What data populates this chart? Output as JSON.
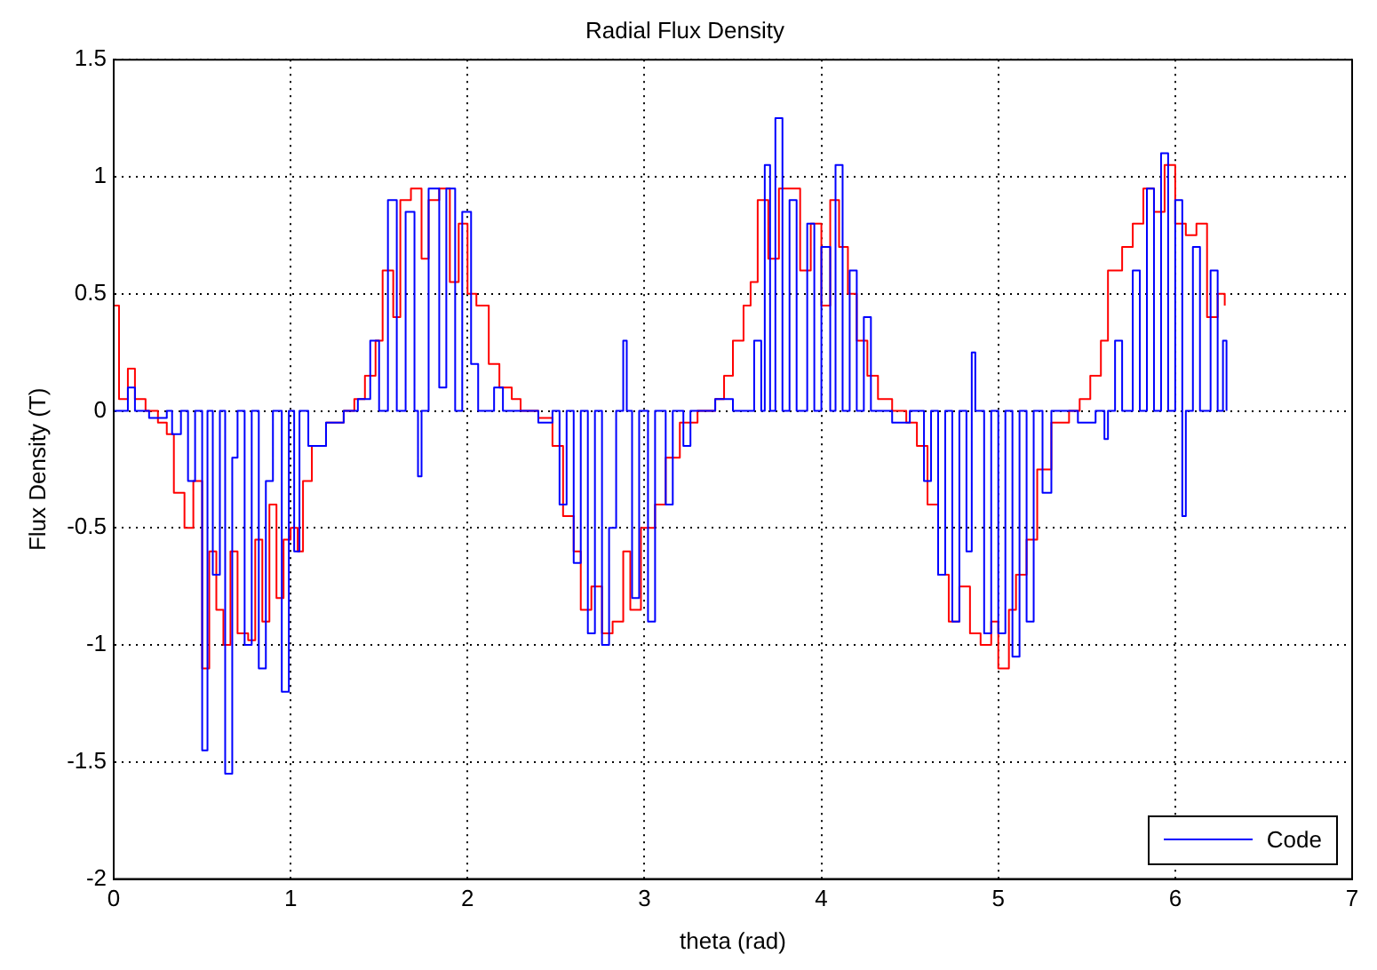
{
  "chart_data": {
    "type": "step",
    "title": "Radial Flux Density",
    "xlabel": "theta (rad)",
    "ylabel": "Flux Density (T)",
    "xlim": [
      0,
      7
    ],
    "xticks": [
      0,
      1,
      2,
      3,
      4,
      5,
      6,
      7
    ],
    "ylim": [
      -2,
      1.5
    ],
    "yticks": [
      -2,
      -1.5,
      -1,
      -0.5,
      0,
      0.5,
      1,
      1.5
    ],
    "grid": true,
    "legend": "bottom right",
    "marker": "none",
    "line_style": "solid",
    "series": [
      {
        "name": "Code",
        "color": "#0000ff",
        "x": [
          0,
          0.08,
          0.12,
          0.2,
          0.3,
          0.33,
          0.38,
          0.42,
          0.46,
          0.5,
          0.53,
          0.56,
          0.6,
          0.63,
          0.67,
          0.7,
          0.74,
          0.78,
          0.82,
          0.86,
          0.9,
          0.95,
          0.99,
          1.02,
          1.05,
          1.1,
          1.2,
          1.3,
          1.38,
          1.45,
          1.5,
          1.55,
          1.6,
          1.65,
          1.7,
          1.72,
          1.74,
          1.78,
          1.84,
          1.88,
          1.93,
          1.97,
          2.02,
          2.06,
          2.15,
          2.2,
          2.4,
          2.48,
          2.52,
          2.56,
          2.6,
          2.64,
          2.68,
          2.72,
          2.76,
          2.8,
          2.84,
          2.88,
          2.9,
          2.93,
          2.97,
          3.02,
          3.06,
          3.12,
          3.16,
          3.22,
          3.26,
          3.4,
          3.5,
          3.62,
          3.66,
          3.68,
          3.71,
          3.74,
          3.78,
          3.82,
          3.86,
          3.92,
          3.96,
          4.0,
          4.05,
          4.08,
          4.12,
          4.16,
          4.2,
          4.24,
          4.28,
          4.4,
          4.5,
          4.58,
          4.62,
          4.66,
          4.7,
          4.74,
          4.78,
          4.82,
          4.85,
          4.87,
          4.92,
          4.96,
          5.0,
          5.04,
          5.08,
          5.12,
          5.16,
          5.2,
          5.25,
          5.3,
          5.45,
          5.55,
          5.6,
          5.62,
          5.66,
          5.7,
          5.76,
          5.8,
          5.84,
          5.88,
          5.92,
          5.96,
          6.0,
          6.04,
          6.06,
          6.1,
          6.14,
          6.2,
          6.24,
          6.27,
          6.29
        ],
        "values": [
          0,
          0.1,
          0,
          -0.03,
          0,
          -0.1,
          0,
          -0.3,
          0,
          -1.45,
          0,
          -0.7,
          0,
          -1.55,
          -0.2,
          0,
          -1.0,
          0,
          -1.1,
          -0.3,
          0,
          -1.2,
          0,
          -0.6,
          0,
          -0.15,
          -0.05,
          0,
          0.05,
          0.3,
          0,
          0.9,
          0,
          0.85,
          0,
          -0.28,
          0,
          0.95,
          0.1,
          0.95,
          0,
          0.85,
          0.2,
          0,
          0.1,
          0,
          -0.05,
          0,
          -0.4,
          0,
          -0.65,
          0,
          -0.95,
          0,
          -1.0,
          -0.5,
          0,
          0.3,
          0,
          -0.8,
          0,
          -0.9,
          0,
          -0.4,
          0,
          -0.15,
          0,
          0.05,
          0,
          0.3,
          0,
          1.05,
          0,
          1.25,
          0,
          0.9,
          0,
          0.8,
          0,
          0.7,
          0,
          1.05,
          0,
          0.6,
          0,
          0.4,
          0,
          -0.05,
          0,
          -0.3,
          0,
          -0.7,
          0,
          -0.9,
          0,
          -0.6,
          0.25,
          0,
          -0.95,
          0,
          -0.95,
          0,
          -1.05,
          0,
          -0.9,
          0,
          -0.35,
          0,
          -0.05,
          0,
          -0.12,
          0,
          0.3,
          0,
          0.6,
          0,
          0.95,
          0,
          1.1,
          0,
          0.9,
          -0.45,
          0,
          0.7,
          0,
          0.6,
          0,
          0.3,
          0
        ]
      },
      {
        "color": "#ff0000",
        "x": [
          0,
          0.03,
          0.08,
          0.12,
          0.18,
          0.25,
          0.3,
          0.34,
          0.4,
          0.45,
          0.5,
          0.54,
          0.58,
          0.62,
          0.66,
          0.7,
          0.76,
          0.8,
          0.84,
          0.88,
          0.92,
          0.96,
          1.0,
          1.04,
          1.07,
          1.12,
          1.2,
          1.3,
          1.36,
          1.42,
          1.48,
          1.52,
          1.58,
          1.62,
          1.68,
          1.74,
          1.78,
          1.84,
          1.9,
          1.95,
          2.0,
          2.05,
          2.12,
          2.18,
          2.25,
          2.3,
          2.4,
          2.48,
          2.54,
          2.6,
          2.64,
          2.7,
          2.76,
          2.82,
          2.88,
          2.92,
          2.98,
          3.06,
          3.12,
          3.2,
          3.3,
          3.4,
          3.45,
          3.5,
          3.56,
          3.6,
          3.64,
          3.7,
          3.76,
          3.82,
          3.88,
          3.94,
          4.0,
          4.05,
          4.1,
          4.15,
          4.2,
          4.26,
          4.32,
          4.4,
          4.48,
          4.54,
          4.6,
          4.66,
          4.72,
          4.78,
          4.84,
          4.9,
          4.96,
          5.0,
          5.06,
          5.1,
          5.16,
          5.22,
          5.3,
          5.4,
          5.46,
          5.52,
          5.58,
          5.62,
          5.7,
          5.76,
          5.82,
          5.88,
          5.94,
          6.0,
          6.06,
          6.12,
          6.18,
          6.24,
          6.28
        ],
        "values": [
          0.45,
          0.05,
          0.18,
          0.05,
          0,
          -0.05,
          -0.1,
          -0.35,
          -0.5,
          -0.3,
          -1.1,
          -0.6,
          -0.85,
          -1.0,
          -0.6,
          -0.95,
          -0.98,
          -0.55,
          -0.9,
          -0.4,
          -0.8,
          -0.55,
          -0.5,
          -0.6,
          -0.3,
          -0.15,
          -0.05,
          0,
          0.05,
          0.15,
          0.3,
          0.6,
          0.4,
          0.9,
          0.95,
          0.65,
          0.9,
          0.95,
          0.55,
          0.8,
          0.5,
          0.45,
          0.2,
          0.1,
          0.05,
          0,
          -0.03,
          -0.15,
          -0.45,
          -0.6,
          -0.85,
          -0.75,
          -0.95,
          -0.9,
          -0.6,
          -0.85,
          -0.5,
          -0.4,
          -0.2,
          -0.05,
          0,
          0.05,
          0.15,
          0.3,
          0.45,
          0.55,
          0.9,
          0.65,
          0.95,
          0.95,
          0.6,
          0.8,
          0.45,
          0.9,
          0.7,
          0.5,
          0.3,
          0.15,
          0.05,
          0,
          -0.05,
          -0.15,
          -0.4,
          -0.7,
          -0.9,
          -0.75,
          -0.95,
          -1.0,
          -0.9,
          -1.1,
          -0.85,
          -0.7,
          -0.55,
          -0.25,
          -0.05,
          0,
          0.05,
          0.15,
          0.3,
          0.6,
          0.7,
          0.8,
          0.95,
          0.85,
          1.05,
          0.8,
          0.75,
          0.8,
          0.4,
          0.5,
          0.45
        ]
      }
    ]
  }
}
